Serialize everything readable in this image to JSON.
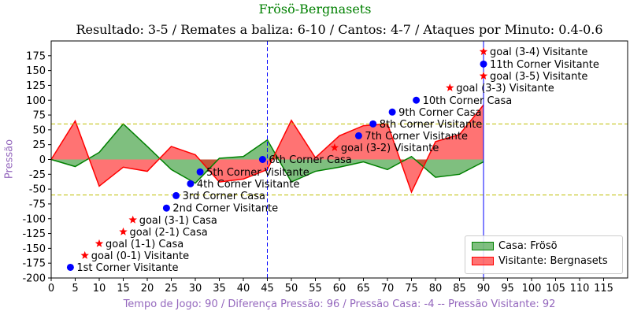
{
  "chart_data": {
    "type": "area",
    "suptitle": "Frösö-Bergnasets",
    "title": "Resultado: 3-5 / Remates a baliza: 6-10 / Cantos: 4-7 / Ataques por Minuto: 0.4-0.6",
    "xlabel": "Tempo de Jogo: 90 / Diferença Pressão: 96 / Pressão Casa: -4 -- Pressão Visitante: 92",
    "ylabel": "Pressão",
    "xlim": [
      0,
      120
    ],
    "ylim": [
      -200,
      200
    ],
    "xticks": [
      0,
      5,
      10,
      15,
      20,
      25,
      30,
      35,
      40,
      45,
      50,
      55,
      60,
      65,
      70,
      75,
      80,
      85,
      90,
      95,
      100,
      105,
      110,
      115
    ],
    "yticks": [
      -200,
      -175,
      -150,
      -125,
      -100,
      -75,
      -50,
      -25,
      0,
      25,
      50,
      75,
      100,
      125,
      150,
      175
    ],
    "hlines": [
      60,
      -60
    ],
    "vlines": [
      {
        "x": 45,
        "style": "dashed"
      },
      {
        "x": 90,
        "style": "solid"
      }
    ],
    "series": [
      {
        "name": "Casa: Frösö",
        "color": "#008000",
        "x": [
          0,
          5,
          10,
          15,
          20,
          25,
          30,
          35,
          40,
          45,
          50,
          55,
          60,
          65,
          70,
          75,
          80,
          85,
          90
        ],
        "values": [
          0,
          -12,
          12,
          60,
          22,
          -17,
          -40,
          2,
          5,
          33,
          -38,
          -20,
          -13,
          -4,
          -17,
          5,
          -30,
          -25,
          -4
        ]
      },
      {
        "name": "Visitante: Bergnasets",
        "color": "#ff0000",
        "x": [
          0,
          5,
          10,
          15,
          20,
          25,
          30,
          35,
          40,
          45,
          50,
          55,
          60,
          65,
          70,
          75,
          80,
          85,
          90
        ],
        "values": [
          0,
          65,
          -45,
          -13,
          -20,
          22,
          8,
          -38,
          -33,
          -17,
          66,
          3,
          40,
          57,
          60,
          -55,
          30,
          42,
          92
        ]
      }
    ],
    "annotations": [
      {
        "x": 4,
        "y": -182,
        "label": "1st Corner Visitante",
        "marker": "circle",
        "color": "#0000ff"
      },
      {
        "x": 7,
        "y": -162,
        "label": "goal (0-1) Visitante",
        "marker": "star",
        "color": "#ff0000"
      },
      {
        "x": 10,
        "y": -142,
        "label": "goal (1-1) Casa",
        "marker": "star",
        "color": "#ff0000"
      },
      {
        "x": 15,
        "y": -122,
        "label": "goal (2-1) Casa",
        "marker": "star",
        "color": "#ff0000"
      },
      {
        "x": 17,
        "y": -102,
        "label": "goal (3-1) Casa",
        "marker": "star",
        "color": "#ff0000"
      },
      {
        "x": 24,
        "y": -82,
        "label": "2nd Corner Visitante",
        "marker": "circle",
        "color": "#0000ff"
      },
      {
        "x": 26,
        "y": -61,
        "label": "3rd Corner Casa",
        "marker": "circle",
        "color": "#0000ff"
      },
      {
        "x": 29,
        "y": -41,
        "label": "4th Corner Visitante",
        "marker": "circle",
        "color": "#0000ff"
      },
      {
        "x": 31,
        "y": -21,
        "label": "5th Corner Visitante",
        "marker": "circle",
        "color": "#0000ff"
      },
      {
        "x": 44,
        "y": 0,
        "label": "6th Corner Casa",
        "marker": "circle",
        "color": "#0000ff"
      },
      {
        "x": 59,
        "y": 20,
        "label": "goal (3-2) Visitante",
        "marker": "star",
        "color": "#ff0000"
      },
      {
        "x": 64,
        "y": 40,
        "label": "7th Corner Visitante",
        "marker": "circle",
        "color": "#0000ff"
      },
      {
        "x": 67,
        "y": 60,
        "label": "8th Corner Visitante",
        "marker": "circle",
        "color": "#0000ff"
      },
      {
        "x": 71,
        "y": 80,
        "label": "9th Corner Casa",
        "marker": "circle",
        "color": "#0000ff"
      },
      {
        "x": 76,
        "y": 100,
        "label": "10th Corner Casa",
        "marker": "circle",
        "color": "#0000ff"
      },
      {
        "x": 83,
        "y": 121,
        "label": "goal (3-3) Visitante",
        "marker": "star",
        "color": "#ff0000"
      },
      {
        "x": 90,
        "y": 141,
        "label": "goal (3-5) Visitante",
        "marker": "star",
        "color": "#ff0000"
      },
      {
        "x": 90,
        "y": 161,
        "label": "11th Corner Visitante",
        "marker": "circle",
        "color": "#0000ff"
      },
      {
        "x": 90,
        "y": 182,
        "label": "goal (3-4) Visitante",
        "marker": "star",
        "color": "#ff0000"
      }
    ],
    "legend": {
      "position": "bottom-right",
      "entries": [
        "Casa: Frösö",
        "Visitante: Bergnasets"
      ]
    },
    "grid": false
  }
}
